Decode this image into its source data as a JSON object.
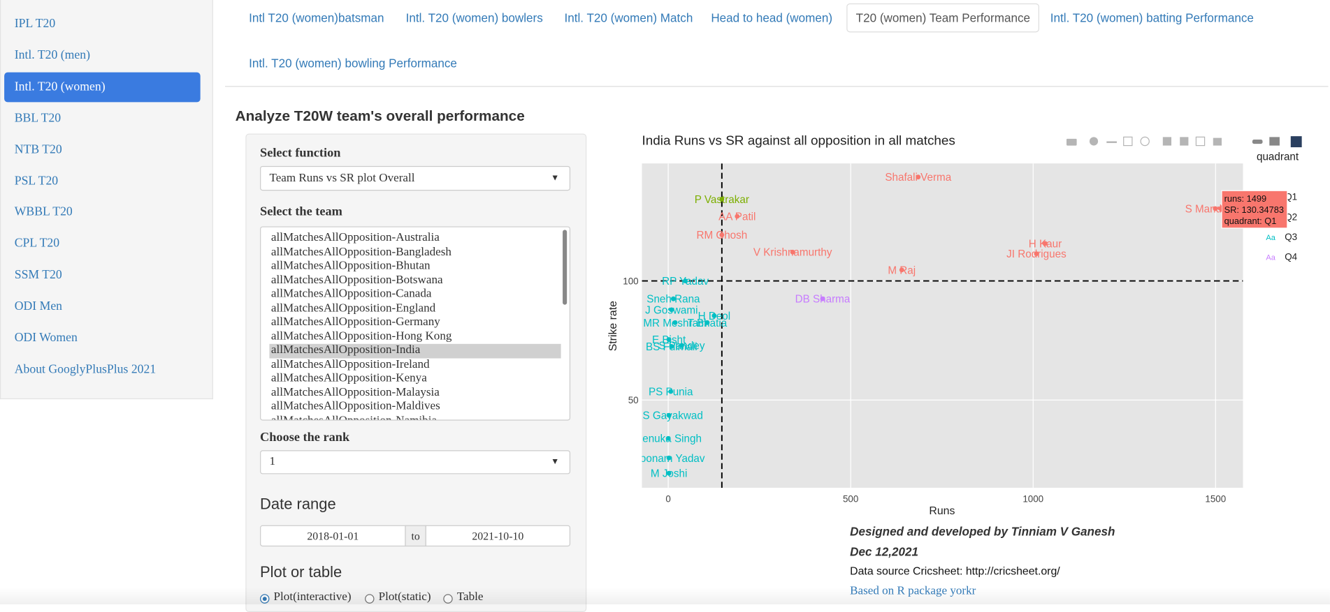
{
  "sidebar": {
    "items": [
      "IPL T20",
      "Intl. T20 (men)",
      "Intl. T20 (women)",
      "BBL T20",
      "NTB T20",
      "PSL T20",
      "WBBL T20",
      "CPL T20",
      "SSM T20",
      "ODI Men",
      "ODI Women",
      "About GooglyPlusPlus 2021"
    ],
    "active": 2
  },
  "tabs": {
    "items": [
      "Intl T20 (women)batsman",
      "Intl. T20 (women) bowlers",
      "Intl. T20 (women) Match",
      "Head to head (women)",
      "T20 (women) Team Performance",
      "Intl. T20 (women) batting Performance",
      "Intl. T20 (women) bowling Performance"
    ],
    "active": 4
  },
  "heading": "Analyze T20W team's overall performance",
  "form": {
    "function_label": "Select function",
    "function_value": "Team Runs vs SR plot Overall",
    "team_label": "Select the team",
    "team_options": [
      "allMatchesAllOpposition-Australia",
      "allMatchesAllOpposition-Bangladesh",
      "allMatchesAllOpposition-Bhutan",
      "allMatchesAllOpposition-Botswana",
      "allMatchesAllOpposition-Canada",
      "allMatchesAllOpposition-England",
      "allMatchesAllOpposition-Germany",
      "allMatchesAllOpposition-Hong Kong",
      "allMatchesAllOpposition-India",
      "allMatchesAllOpposition-Ireland",
      "allMatchesAllOpposition-Kenya",
      "allMatchesAllOpposition-Malaysia",
      "allMatchesAllOpposition-Maldives",
      "allMatchesAllOpposition-Namibia"
    ],
    "team_selected": 8,
    "rank_label": "Choose the rank",
    "rank_value": "1",
    "date_label": "Date range",
    "date_start": "2018-01-01",
    "date_sep": "to",
    "date_end": "2021-10-10",
    "output_label": "Plot or table",
    "output_options": [
      "Plot(interactive)",
      "Plot(static)",
      "Table"
    ],
    "output_selected": 0
  },
  "chart_data": {
    "type": "scatter",
    "title": "India Runs vs SR against all opposition in all matches",
    "x_label": "Runs",
    "y_label": "Strike rate",
    "legend_title": "quadrant",
    "legend_marker": "Aa",
    "xlim": [
      -72,
      1575
    ],
    "ylim": [
      13.2,
      149.3
    ],
    "xticks": [
      0,
      500,
      1000,
      1500
    ],
    "yticks": [
      50,
      100
    ],
    "grid": true,
    "vline": 147,
    "hline": 100,
    "series": [
      {
        "name": "Q1",
        "color": "#f8766d",
        "labels": [
          "Shafali Verma",
          "S Mandhana",
          "AA Patil",
          "RM Ghosh",
          "V Krishnamurthy",
          "H Kaur",
          "JI Rodrigues",
          "M Raj"
        ],
        "x": [
          685,
          1499,
          189,
          147,
          341,
          1033,
          1009,
          640
        ],
        "values": [
          143.6,
          130.34783,
          127.1,
          119.3,
          112.1,
          115.7,
          111.4,
          104.6
        ]
      },
      {
        "name": "Q2",
        "color": "#7cae00",
        "labels": [
          "P Vastrakar"
        ],
        "x": [
          147
        ],
        "values": [
          134.3
        ]
      },
      {
        "name": "Q3",
        "color": "#00bfc4",
        "labels": [
          "RP Yadav",
          "Sneh Rana",
          "J Goswami",
          "H Deol",
          "MR Meshram",
          "T Bhatia",
          "E Bisht",
          "BS Fulmali",
          "S Pandey",
          "PS Punia",
          "RS Gayakwad",
          "Renuka Singh",
          "Poonam Yadav",
          "M Joshi"
        ],
        "x": [
          47,
          14,
          9,
          126,
          19,
          107,
          2,
          9,
          37,
          7,
          2,
          0,
          2,
          2
        ],
        "values": [
          100,
          92.5,
          87.9,
          85.4,
          82.5,
          82.5,
          75.4,
          72.5,
          72.9,
          53.6,
          43.6,
          33.9,
          25.7,
          19.3
        ]
      },
      {
        "name": "Q4",
        "color": "#c77cff",
        "labels": [
          "DB Sharma"
        ],
        "x": [
          423
        ],
        "values": [
          92.5
        ]
      }
    ],
    "tooltip": [
      "runs: 1499",
      "SR: 130.34783",
      "quadrant: Q1"
    ]
  },
  "footer": {
    "credit": "Designed and developed by Tinniam V Ganesh",
    "date": "Dec 12,2021",
    "source": "Data source Cricsheet: http://cricsheet.org/",
    "package": "Based on R package yorkr"
  }
}
